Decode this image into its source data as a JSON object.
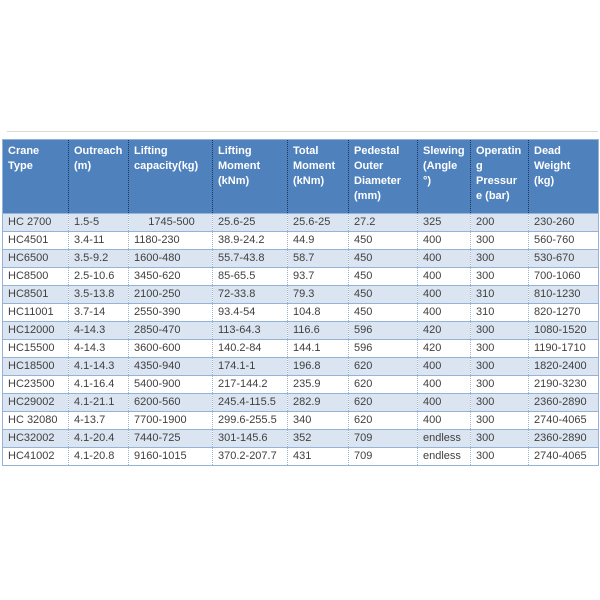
{
  "table": {
    "columns": [
      "Crane Type",
      "Outreach (m)",
      "Lifting capacity(kg)",
      "Lifting Moment (kNm)",
      "Total Moment (kNm)",
      "Pedestal Outer Diameter (mm)",
      "Slewing (Angle °)",
      "Operating Pressure (bar)",
      "Dead Weight (kg)"
    ],
    "rows": [
      [
        "HC 2700",
        "1.5-5",
        "1745-500",
        "25.6-25",
        "25.6-25",
        "27.2",
        "325",
        "200",
        "230-260"
      ],
      [
        "HC4501",
        "3.4-11",
        "1180-230",
        "38.9-24.2",
        "44.9",
        "450",
        "400",
        "300",
        "560-760"
      ],
      [
        "HC6500",
        "3.5-9.2",
        "1600-480",
        "55.7-43.8",
        "58.7",
        "450",
        "400",
        "300",
        "530-670"
      ],
      [
        "HC8500",
        "2.5-10.6",
        "3450-620",
        "85-65.5",
        "93.7",
        "450",
        "400",
        "300",
        "700-1060"
      ],
      [
        "HC8501",
        "3.5-13.8",
        "2100-250",
        "72-33.8",
        "79.3",
        "450",
        "400",
        "310",
        "810-1230"
      ],
      [
        "HC11001",
        "3.7-14",
        "2550-390",
        "93.4-54",
        "104.8",
        "450",
        "400",
        "310",
        "820-1270"
      ],
      [
        "HC12000",
        "4-14.3",
        "2850-470",
        "113-64.3",
        "116.6",
        "596",
        "420",
        "300",
        "1080-1520"
      ],
      [
        "HC15500",
        "4-14.3",
        "3600-600",
        "140.2-84",
        "144.1",
        "596",
        "420",
        "300",
        "1190-1710"
      ],
      [
        "HC18500",
        "4.1-14.3",
        "4350-940",
        "174.1-1",
        "196.8",
        "620",
        "400",
        "300",
        "1820-2400"
      ],
      [
        "HC23500",
        "4.1-16.4",
        "5400-900",
        "217-144.2",
        "235.9",
        "620",
        "400",
        "300",
        "2190-3230"
      ],
      [
        "HC29002",
        "4.1-21.1",
        "6200-560",
        "245.4-115.5",
        "282.9",
        "620",
        "400",
        "300",
        "2360-2890"
      ],
      [
        "HC 32080",
        "4-13.7",
        "7700-1900",
        "299.6-255.5",
        "340",
        "620",
        "400",
        "300",
        "2740-4065"
      ],
      [
        "HC32002",
        "4.1-20.4",
        "7440-725",
        "301-145.6",
        "352",
        "709",
        "endless",
        "300",
        "2360-2890"
      ],
      [
        "HC41002",
        "4.1-20.8",
        "9160-1015",
        "370.2-207.7",
        "431",
        "709",
        "endless",
        "300",
        "2740-4065"
      ]
    ]
  },
  "colors": {
    "header_bg": "#4f81bd",
    "header_text": "#ffffff",
    "header_divider": "#17365d",
    "row_alt_bg": "#dbe5f1",
    "row_bg": "#ffffff",
    "border": "#95b3d7",
    "body_divider": "#9cb3cd",
    "cell_text": "#3f3f3f",
    "separator": "#d9d9d9"
  }
}
